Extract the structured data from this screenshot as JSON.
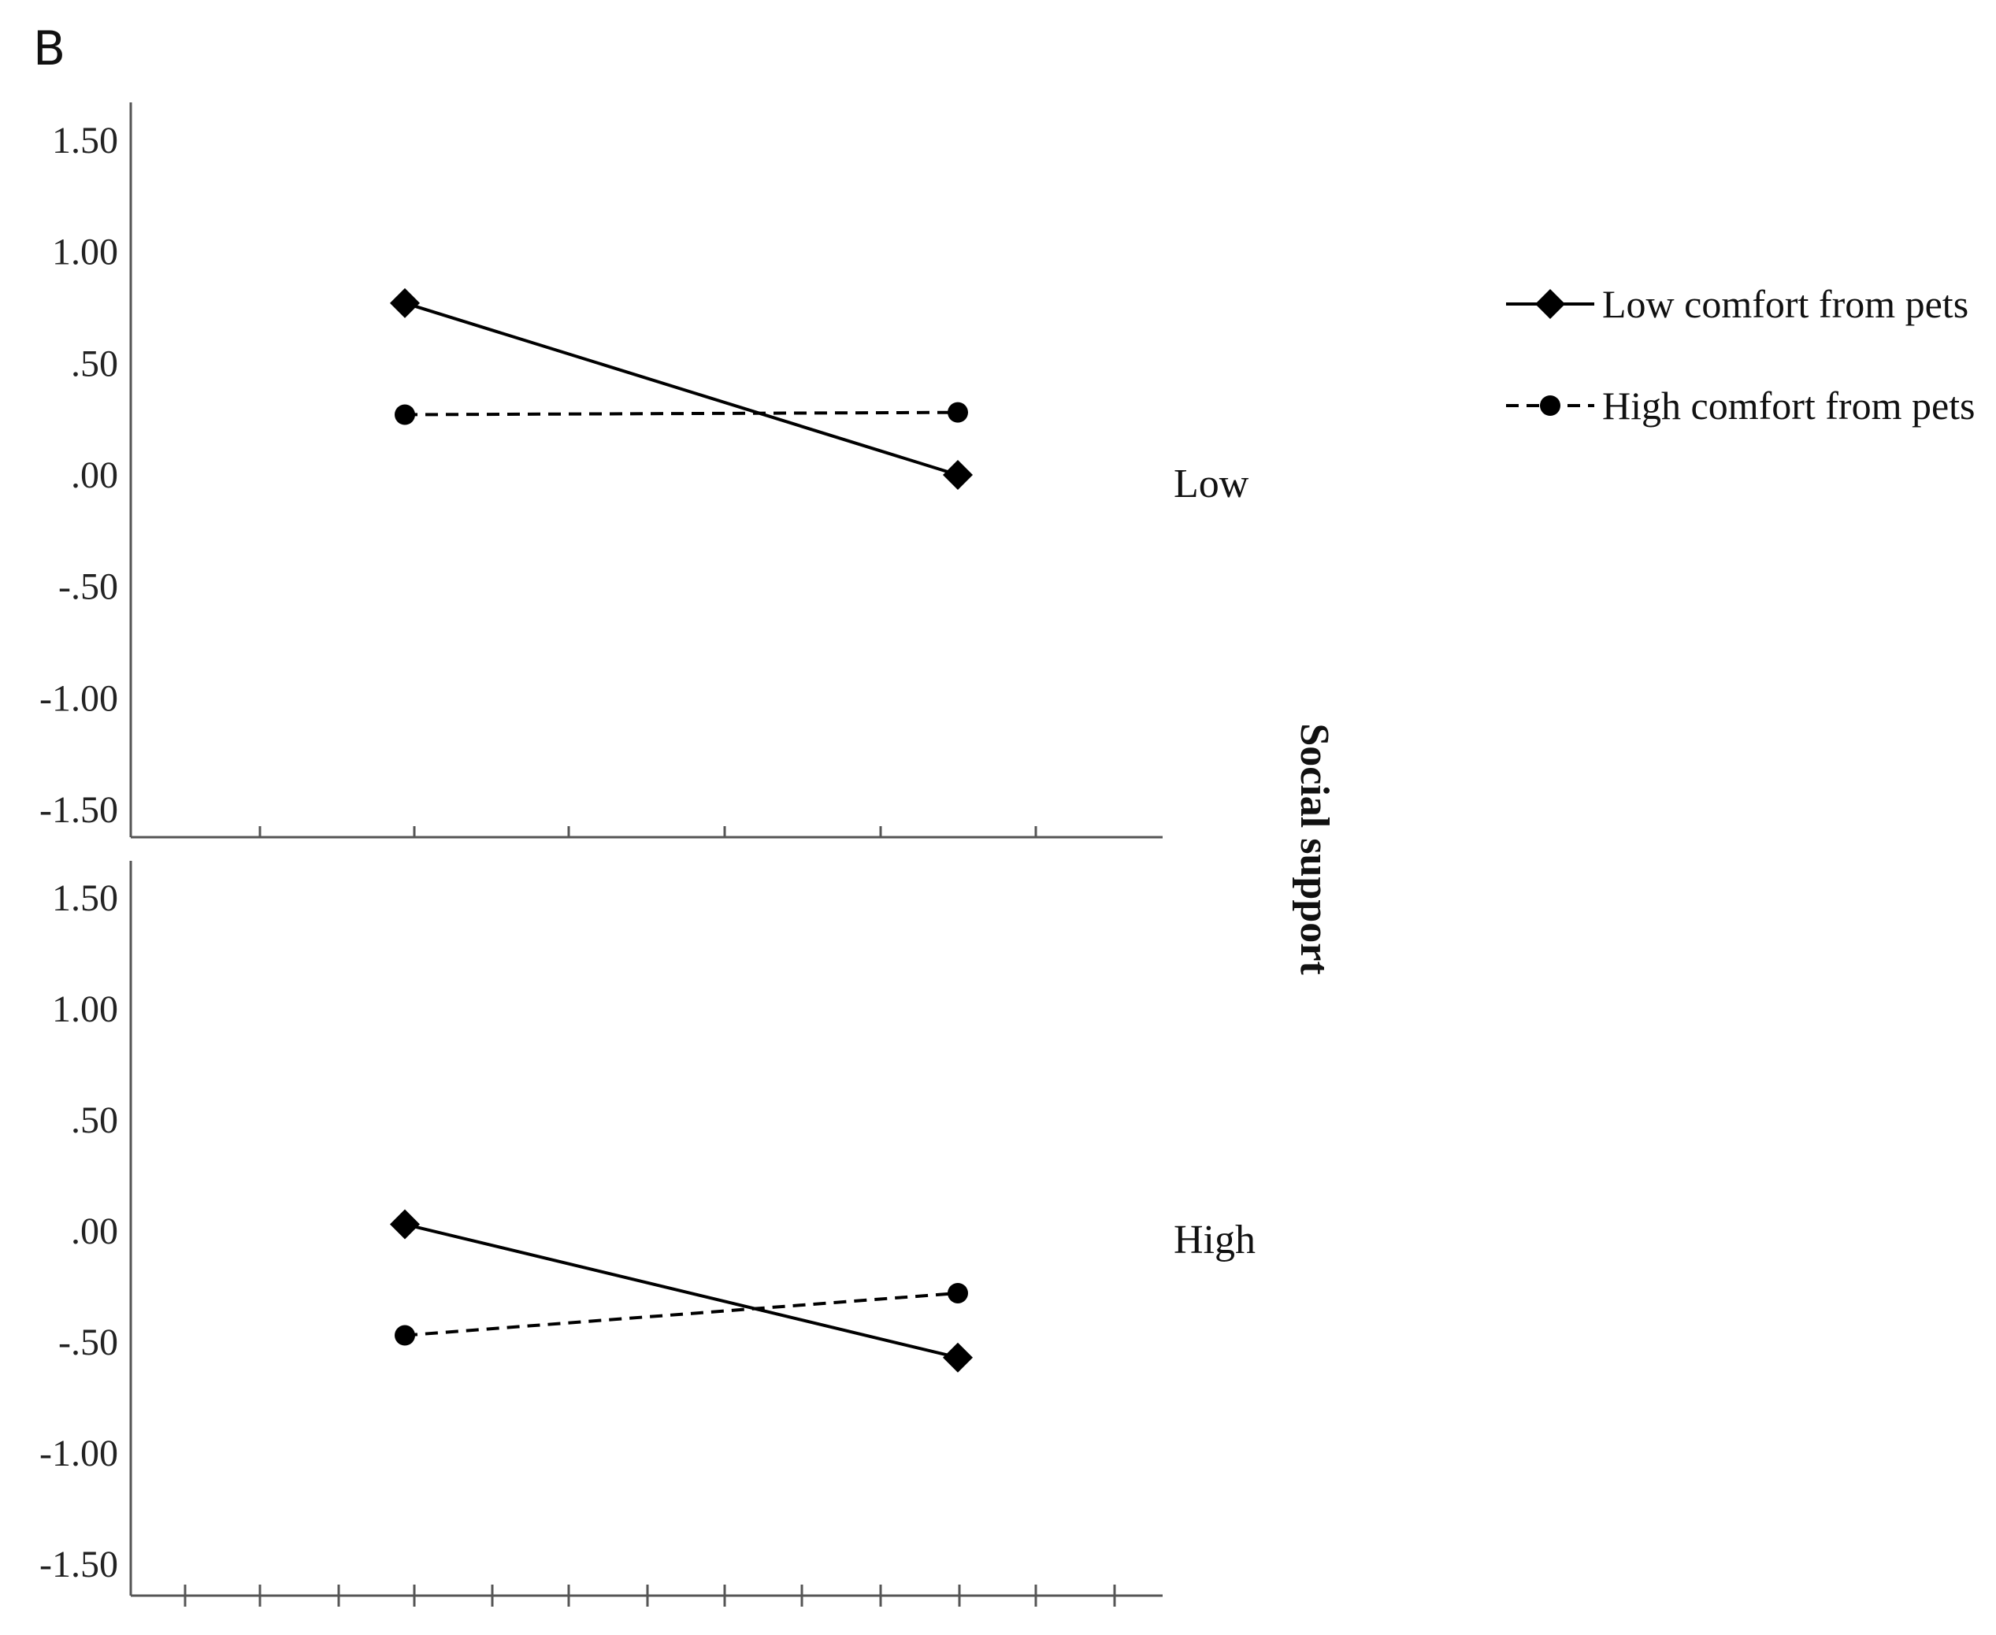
{
  "panel_letter": "B",
  "facet_title": "Social support",
  "legend": {
    "items": [
      {
        "label": "Low comfort from pets",
        "marker": "diamond",
        "dash": "solid"
      },
      {
        "label": "High comfort from pets",
        "marker": "circle",
        "dash": "dashed"
      }
    ]
  },
  "chart_data": {
    "type": "line",
    "title": "",
    "xlabel": "",
    "ylabel": "",
    "ylim": [
      -1.5,
      1.5
    ],
    "yticks": [
      1.5,
      1.0,
      0.5,
      0.0,
      -0.5,
      -1.0,
      -1.5
    ],
    "ytick_labels": [
      "1.50",
      "1.00",
      ".50",
      ".00",
      "-.50",
      "-1.00",
      "-1.50"
    ],
    "x": [
      1,
      2
    ],
    "grid": false,
    "legend_position": "top-right",
    "line_color": "#000000",
    "facets": [
      {
        "label": "Low",
        "series": [
          {
            "name": "Low comfort from pets",
            "values": [
              0.77,
              0.0
            ]
          },
          {
            "name": "High comfort from pets",
            "values": [
              0.27,
              0.28
            ]
          }
        ]
      },
      {
        "label": "High",
        "series": [
          {
            "name": "Low comfort from pets",
            "values": [
              0.03,
              -0.57
            ]
          },
          {
            "name": "High comfort from pets",
            "values": [
              -0.47,
              -0.28
            ]
          }
        ]
      }
    ]
  }
}
